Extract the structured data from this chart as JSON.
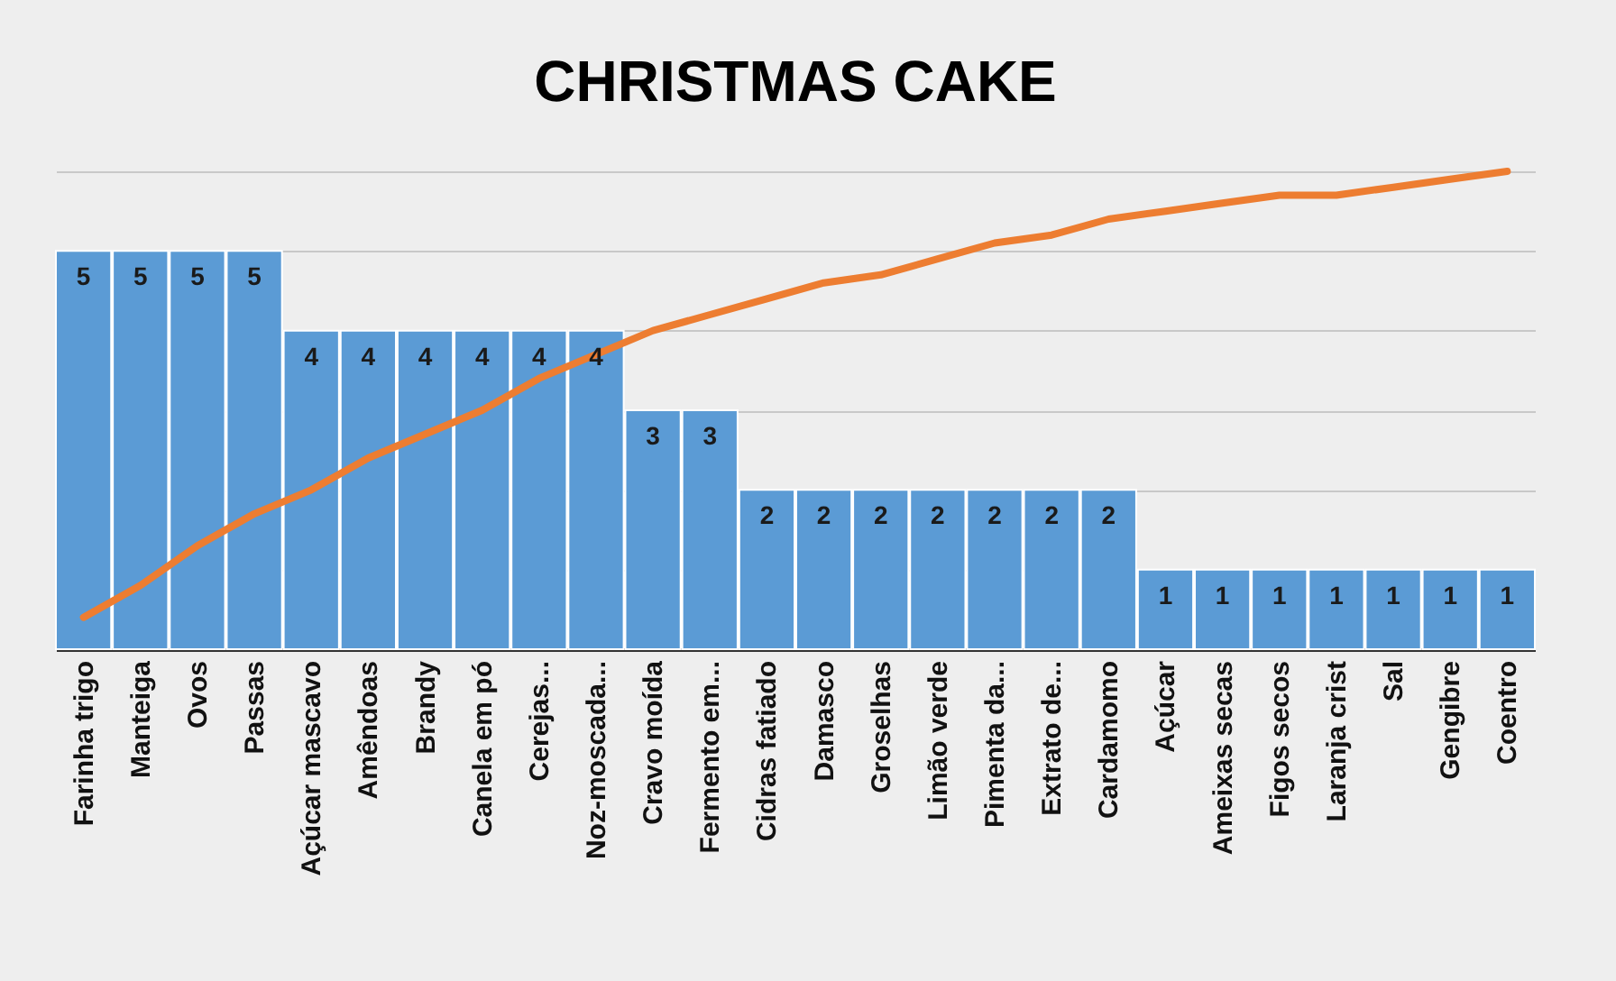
{
  "chart_data": {
    "type": "bar",
    "title": "CHRISTMAS  CAKE",
    "categories": [
      "Farinha trigo",
      "Manteiga",
      "Ovos",
      "Passas",
      "Açúcar mascavo",
      "Amêndoas",
      "Brandy",
      "Canela em pó",
      "Cerejas...",
      "Noz-moscada...",
      "Cravo moída",
      "Fermento em...",
      "Cidras fatiado",
      "Damasco",
      "Groselhas",
      "Limão verde",
      "Pimenta da...",
      "Extrato de...",
      "Cardamomo",
      "Açúcar",
      "Ameixas  secas",
      "Figos secos",
      "Laranja crist",
      "Sal",
      "Gengibre",
      "Coentro"
    ],
    "series": [
      {
        "color": "#5b9bd5",
        "values": [
          5,
          5,
          5,
          5,
          4,
          4,
          4,
          4,
          4,
          4,
          3,
          3,
          2,
          2,
          2,
          2,
          2,
          2,
          2,
          1,
          1,
          1,
          1,
          1,
          1,
          1
        ],
        "value_labels": [
          "5",
          "5",
          "5",
          "5",
          "4",
          "4",
          "4",
          "4",
          "4",
          "4",
          "3",
          "3",
          "2",
          "2",
          "2",
          "2",
          "2",
          "2",
          "2",
          "1",
          "1",
          "1",
          "1",
          "1",
          "1",
          "1"
        ]
      },
      {
        "type": "line",
        "color": "#ed7d31",
        "values": [
          0.4,
          0.8,
          1.3,
          1.7,
          2.0,
          2.4,
          2.7,
          3.0,
          3.4,
          3.7,
          4.0,
          4.2,
          4.4,
          4.6,
          4.7,
          4.9,
          5.1,
          5.2,
          5.4,
          5.5,
          5.6,
          5.7,
          5.7,
          5.8,
          5.9,
          6.0
        ]
      }
    ],
    "ylim": [
      0,
      6
    ],
    "yticks": [
      {
        "value": 0,
        "label": null
      },
      {
        "value": 1,
        "label": null
      },
      {
        "value": 2,
        "label": null
      },
      {
        "value": 3,
        "label": null
      },
      {
        "value": 4,
        "label": null
      },
      {
        "value": 5,
        "label": null
      },
      {
        "value": 6,
        "label": null
      }
    ],
    "grid": "y",
    "tick_labels": "x",
    "marker": "none"
  }
}
